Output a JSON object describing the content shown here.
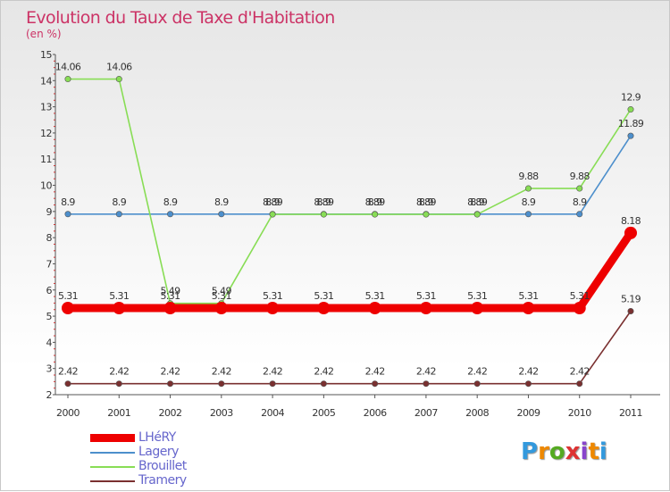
{
  "chart_data": {
    "type": "line",
    "title": "Evolution du Taux de Taxe d'Habitation",
    "subtitle": "(en %)",
    "x": [
      "2000",
      "2001",
      "2002",
      "2003",
      "2004",
      "2005",
      "2006",
      "2007",
      "2008",
      "2009",
      "2010",
      "2011"
    ],
    "ylim": [
      2,
      15
    ],
    "yticks": [
      "2",
      "3",
      "4",
      "5",
      "6",
      "7",
      "8",
      "9",
      "10",
      "11",
      "12",
      "13",
      "14",
      "15"
    ],
    "grid": false,
    "legend_position": "bottom-left",
    "series": [
      {
        "name": "LHéRY",
        "color": "#ee0000",
        "values": [
          5.31,
          5.31,
          5.31,
          5.31,
          5.31,
          5.31,
          5.31,
          5.31,
          5.31,
          5.31,
          5.31,
          8.18
        ],
        "labels": [
          "5.31",
          "5.31",
          "5.31",
          "5.31",
          "5.31",
          "5.31",
          "5.31",
          "5.31",
          "5.31",
          "5.31",
          "5.31",
          "8.18"
        ]
      },
      {
        "name": "Lagery",
        "color": "#4d8fcc",
        "values": [
          8.9,
          8.9,
          8.9,
          8.9,
          8.9,
          8.9,
          8.9,
          8.9,
          8.9,
          8.9,
          8.9,
          11.89
        ],
        "labels": [
          "8.9",
          "8.9",
          "8.9",
          "8.9",
          "8.9",
          "8.9",
          "8.9",
          "8.9",
          "8.9",
          "8.9",
          "8.9",
          "11.89"
        ]
      },
      {
        "name": "Brouillet",
        "color": "#88dd55",
        "values": [
          14.06,
          14.06,
          5.49,
          5.49,
          8.89,
          8.89,
          8.89,
          8.89,
          8.89,
          9.88,
          9.88,
          12.9
        ],
        "labels": [
          "14.06",
          "14.06",
          "5.49",
          "5.49",
          "8.89",
          "8.89",
          "8.89",
          "8.89",
          "8.89",
          "9.88",
          "9.88",
          "12.9"
        ]
      },
      {
        "name": "Tramery",
        "color": "#7a3030",
        "values": [
          2.42,
          2.42,
          2.42,
          2.42,
          2.42,
          2.42,
          2.42,
          2.42,
          2.42,
          2.42,
          2.42,
          5.19
        ],
        "labels": [
          "2.42",
          "2.42",
          "2.42",
          "2.42",
          "2.42",
          "2.42",
          "2.42",
          "2.42",
          "2.42",
          "2.42",
          "2.42",
          "5.19"
        ]
      }
    ]
  },
  "logo": {
    "letters": [
      "P",
      "r",
      "o",
      "x",
      "i",
      "t",
      "i"
    ],
    "colors": [
      "#3399dd",
      "#ee8800",
      "#55aa22",
      "#dd3333",
      "#8844cc",
      "#ee8800",
      "#3399dd"
    ]
  }
}
